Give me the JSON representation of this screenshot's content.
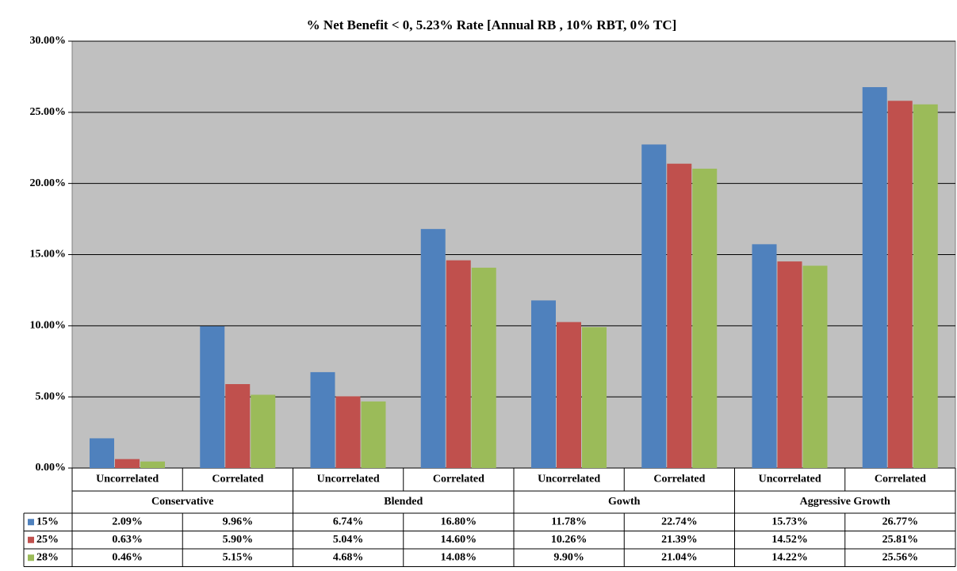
{
  "chart_data": {
    "type": "bar",
    "title": "% Net Benefit < 0, 5.23% Rate  [Annual RB ,  10% RBT, 0% TC]",
    "categories": [
      "Uncorrelated",
      "Correlated",
      "Uncorrelated",
      "Correlated",
      "Uncorrelated",
      "Correlated",
      "Uncorrelated",
      "Correlated"
    ],
    "category_groups": [
      "Conservative",
      "Blended",
      "Gowth",
      "Aggressive Growth"
    ],
    "series": [
      {
        "name": "15%",
        "color": "#4f81bd",
        "values": [
          2.09,
          9.96,
          6.74,
          16.8,
          11.78,
          22.74,
          15.73,
          26.77
        ],
        "value_labels": [
          "2.09%",
          "9.96%",
          "6.74%",
          "16.80%",
          "11.78%",
          "22.74%",
          "15.73%",
          "26.77%"
        ]
      },
      {
        "name": "25%",
        "color": "#c0504d",
        "values": [
          0.63,
          5.9,
          5.04,
          14.6,
          10.26,
          21.39,
          14.52,
          25.81
        ],
        "value_labels": [
          "0.63%",
          "5.90%",
          "5.04%",
          "14.60%",
          "10.26%",
          "21.39%",
          "14.52%",
          "25.81%"
        ]
      },
      {
        "name": "28%",
        "color": "#9bbb59",
        "values": [
          0.46,
          5.15,
          4.68,
          14.08,
          9.9,
          21.04,
          14.22,
          25.56
        ],
        "value_labels": [
          "0.46%",
          "5.15%",
          "4.68%",
          "14.08%",
          "9.90%",
          "21.04%",
          "14.22%",
          "25.56%"
        ]
      }
    ],
    "ylim": [
      0,
      30
    ],
    "yticks": [
      {
        "value": 0,
        "label": "0.00%"
      },
      {
        "value": 5,
        "label": "5.00%"
      },
      {
        "value": 10,
        "label": "10.00%"
      },
      {
        "value": 15,
        "label": "15.00%"
      },
      {
        "value": 20,
        "label": "20.00%"
      },
      {
        "value": 25,
        "label": "25.00%"
      },
      {
        "value": 30,
        "label": "30.00%"
      }
    ],
    "grid": true,
    "plot_background": "#c0c0c0"
  }
}
